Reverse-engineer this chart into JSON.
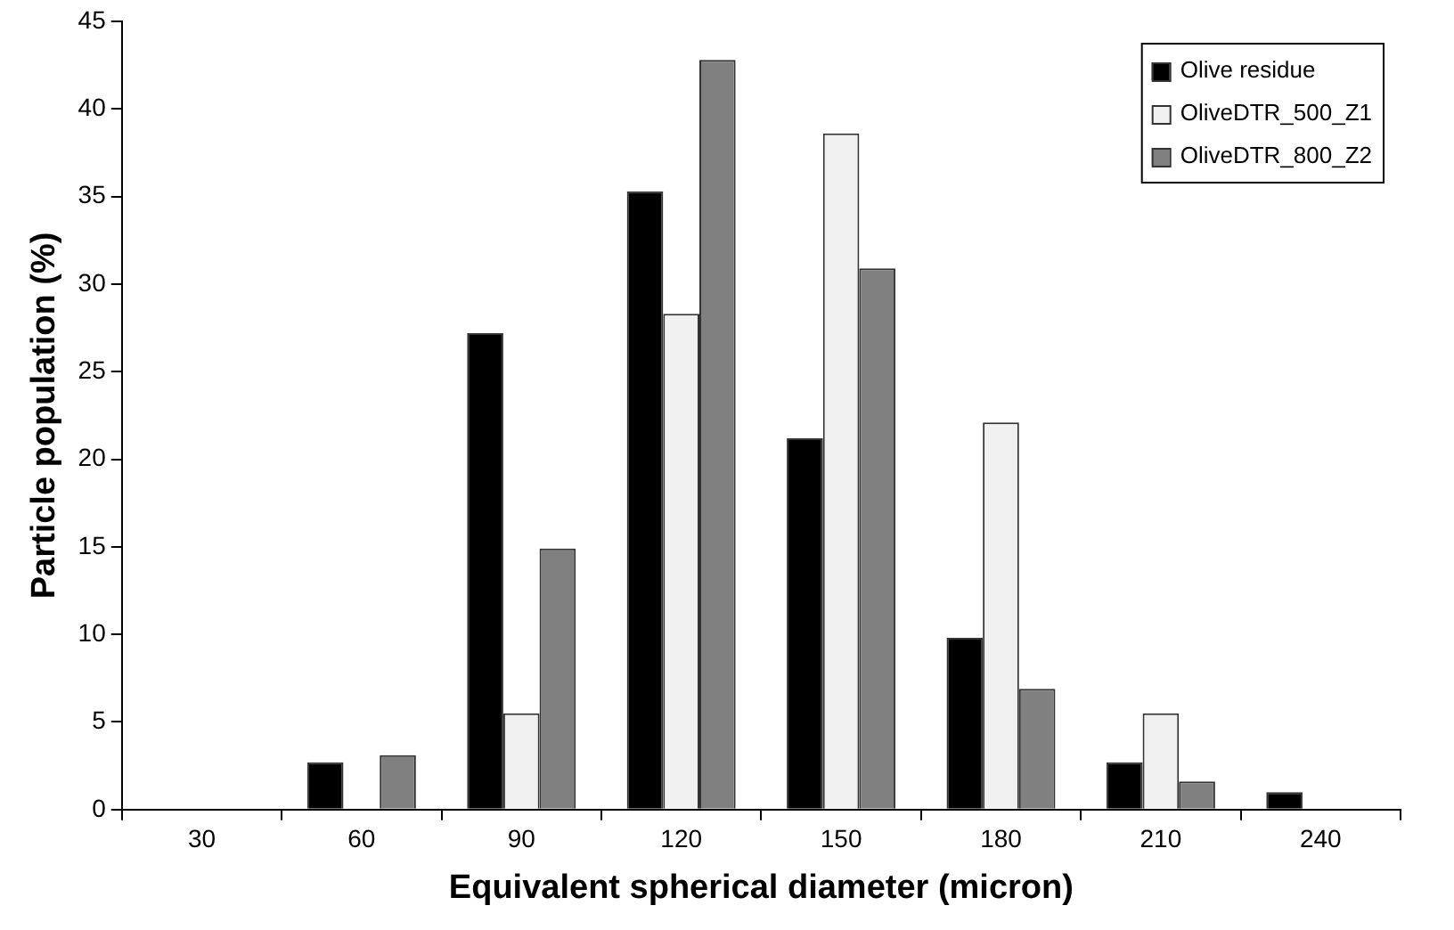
{
  "chart_data": {
    "type": "bar",
    "xlabel": "Equivalent spherical diameter (micron)",
    "ylabel": "Particle population (%)",
    "categories": [
      "30",
      "60",
      "90",
      "120",
      "150",
      "180",
      "210",
      "240"
    ],
    "series": [
      {
        "name": "Olive residue",
        "color": "#000000",
        "values": [
          0,
          2.7,
          27.2,
          35.3,
          21.2,
          9.8,
          2.7,
          1.0
        ]
      },
      {
        "name": "OliveDTR_500_Z1",
        "color": "#f0f0f0",
        "values": [
          0,
          0,
          5.5,
          28.3,
          38.6,
          22.1,
          5.5,
          0
        ]
      },
      {
        "name": "OliveDTR_800_Z2",
        "color": "#808080",
        "values": [
          0,
          3.1,
          14.9,
          42.8,
          30.9,
          6.9,
          1.6,
          0
        ]
      }
    ],
    "ylim": [
      0,
      45
    ],
    "yticks": [
      0,
      5,
      10,
      15,
      20,
      25,
      30,
      35,
      40,
      45
    ],
    "grid": false,
    "legend": "top right"
  }
}
